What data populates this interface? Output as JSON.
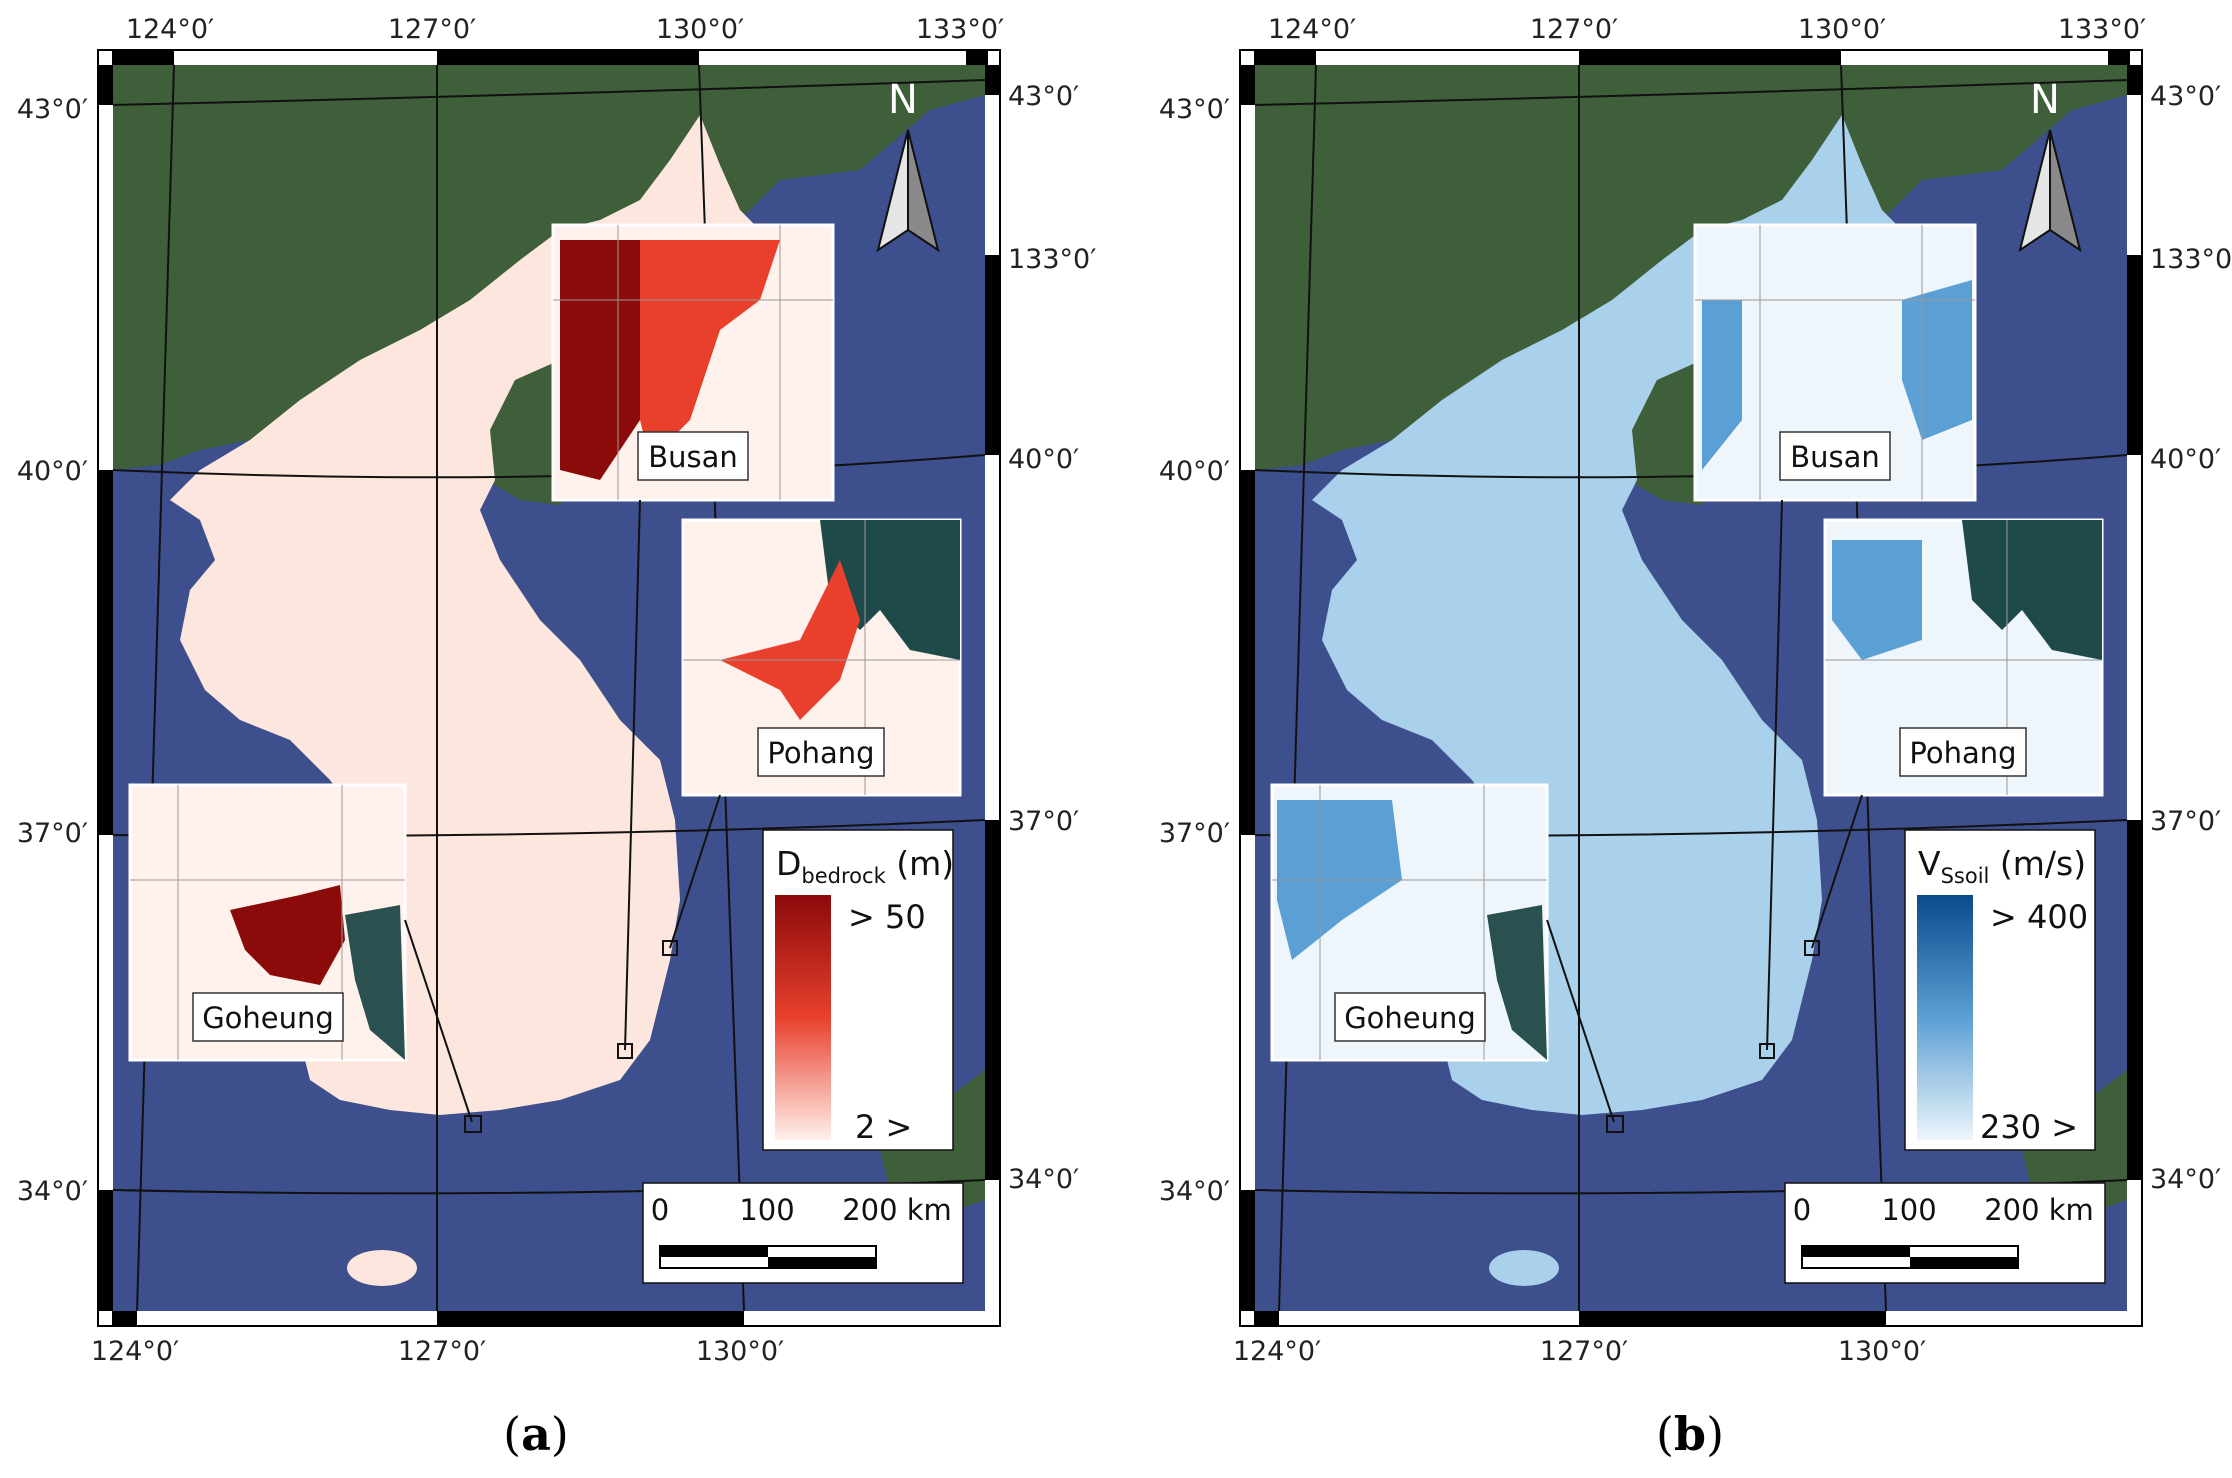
{
  "panels": [
    {
      "id": "a",
      "sublabel_open": "(",
      "sublabel_letter": "a",
      "sublabel_close": ")",
      "top_lon_labels": [
        "124°0′",
        "127°0′",
        "130°0′",
        "133°0′"
      ],
      "bottom_lon_labels": [
        "124°0′",
        "127°0′",
        "130°0′"
      ],
      "left_lat_labels": [
        "43°0′",
        "40°0′",
        "37°0′",
        "34°0′"
      ],
      "right_lat_labels": [
        "43°0′",
        "133°0′",
        "40°0′",
        "37°0′",
        "34°0′"
      ],
      "north_label": "N",
      "insets": {
        "busan": "Busan",
        "pohang": "Pohang",
        "goheung": "Goheung"
      },
      "legend": {
        "title_main": "D",
        "title_sub": "bedrock",
        "title_unit": " (m)",
        "max_label": "> 50",
        "min_label": "2 >",
        "color_high": "#8b0a0a",
        "color_mid": "#e8402d",
        "color_low": "#fff1ec"
      },
      "scalebar": {
        "labels": [
          "0",
          "100",
          "200 km"
        ]
      },
      "land_color": "#fde6dd"
    },
    {
      "id": "b",
      "sublabel_open": "(",
      "sublabel_letter": "b",
      "sublabel_close": ")",
      "top_lon_labels": [
        "124°0′",
        "127°0′",
        "130°0′",
        "133°0′"
      ],
      "bottom_lon_labels": [
        "124°0′",
        "127°0′",
        "130°0′"
      ],
      "left_lat_labels": [
        "43°0′",
        "40°0′",
        "37°0′",
        "34°0′"
      ],
      "right_lat_labels": [
        "43°0′",
        "133°0′",
        "40°0′",
        "37°0′",
        "34°0′"
      ],
      "north_label": "N",
      "insets": {
        "busan": "Busan",
        "pohang": "Pohang",
        "goheung": "Goheung"
      },
      "legend": {
        "title_main": "V",
        "title_sub": "Ssoil",
        "title_unit": " (m/s)",
        "max_label": "> 400",
        "min_label": "230 >",
        "color_high": "#0b4a8c",
        "color_mid": "#5aa0d4",
        "color_low": "#eef5fb"
      },
      "scalebar": {
        "labels": [
          "0",
          "100",
          "200 km"
        ]
      },
      "land_color": "#a9d1ec"
    }
  ],
  "colors": {
    "sea": "#3d4f8c",
    "sea_dark": "#2b3a72",
    "china_land": "#3f5e3a",
    "frame_black": "#000000"
  }
}
